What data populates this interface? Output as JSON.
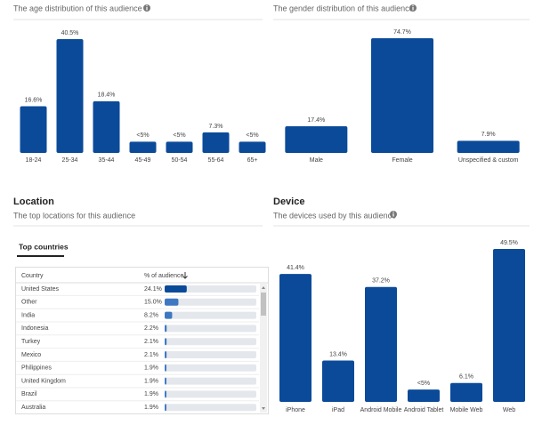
{
  "age": {
    "type": "bar",
    "title": "The age distribution of this audience",
    "categories": [
      "18-24",
      "25-34",
      "35-44",
      "45-49",
      "50-54",
      "55-64",
      "65+"
    ],
    "values": [
      16.6,
      40.5,
      18.4,
      4,
      4,
      7.3,
      4
    ],
    "value_labels": [
      "16.6%",
      "40.5%",
      "18.4%",
      "<5%",
      "<5%",
      "7.3%",
      "<5%"
    ],
    "color": "#0b4a99"
  },
  "gender": {
    "type": "bar",
    "title": "The gender distribution of this audience",
    "categories": [
      "Male",
      "Female",
      "Unspecified & custom"
    ],
    "values": [
      17.4,
      74.7,
      7.9
    ],
    "value_labels": [
      "17.4%",
      "74.7%",
      "7.9%"
    ],
    "color": "#0b4a99"
  },
  "location": {
    "title": "Location",
    "subtitle": "The top locations for this audience",
    "tab": "Top countries",
    "table": {
      "columns": [
        "Country",
        "% of audience"
      ],
      "bar_color": "#3f78c2",
      "rows": [
        [
          "United States",
          {
            "value": 24.1,
            "label": "24.1%"
          }
        ],
        [
          "Other",
          {
            "value": 15.0,
            "label": "15.0%"
          }
        ],
        [
          "India",
          {
            "value": 8.2,
            "label": "8.2%"
          }
        ],
        [
          "Indonesia",
          {
            "value": 2.2,
            "label": "2.2%"
          }
        ],
        [
          "Turkey",
          {
            "value": 2.1,
            "label": "2.1%"
          }
        ],
        [
          "Mexico",
          {
            "value": 2.1,
            "label": "2.1%"
          }
        ],
        [
          "Philippines",
          {
            "value": 1.9,
            "label": "1.9%"
          }
        ],
        [
          "United Kingdom",
          {
            "value": 1.9,
            "label": "1.9%"
          }
        ],
        [
          "Brazil",
          {
            "value": 1.9,
            "label": "1.9%"
          }
        ],
        [
          "Australia",
          {
            "value": 1.9,
            "label": "1.9%"
          }
        ]
      ]
    }
  },
  "device": {
    "type": "bar",
    "title": "Device",
    "subtitle": "The devices used by this audience",
    "categories": [
      "iPhone",
      "iPad",
      "Android Mobile",
      "Android Tablet",
      "Mobile Web",
      "Web"
    ],
    "values": [
      41.4,
      13.4,
      37.2,
      4,
      6.1,
      49.5
    ],
    "value_labels": [
      "41.4%",
      "13.4%",
      "37.2%",
      "<5%",
      "6.1%",
      "49.5%"
    ],
    "color": "#0b4a99"
  }
}
